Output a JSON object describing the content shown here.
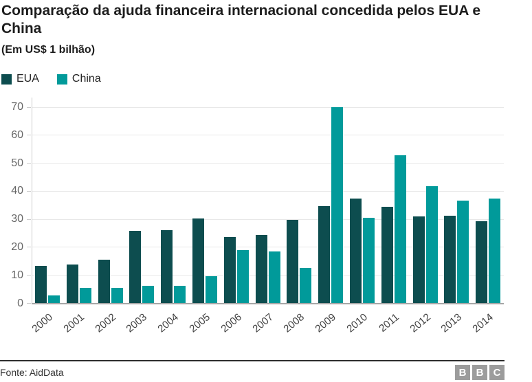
{
  "header": {
    "title": "Comparação da ajuda financeira internacional concedida pelos EUA e China",
    "subtitle": "(Em US$ 1 bilhão)"
  },
  "legend": {
    "items": [
      {
        "label": "EUA",
        "color": "#0d4d4f"
      },
      {
        "label": "China",
        "color": "#019a9a"
      }
    ]
  },
  "chart_data": {
    "type": "bar",
    "title": "Comparação da ajuda financeira internacional concedida pelos EUA e China",
    "subtitle": "(Em US$ 1 bilhão)",
    "categories": [
      "2000",
      "2001",
      "2002",
      "2003",
      "2004",
      "2005",
      "2006",
      "2007",
      "2008",
      "2009",
      "2010",
      "2011",
      "2012",
      "2013",
      "2014"
    ],
    "series": [
      {
        "name": "EUA",
        "color": "#0d4d4f",
        "values": [
          13.4,
          13.9,
          15.5,
          25.8,
          26.2,
          30.4,
          23.7,
          24.3,
          29.9,
          34.6,
          37.3,
          34.4,
          31.0,
          31.3,
          29.4
        ]
      },
      {
        "name": "China",
        "color": "#019a9a",
        "values": [
          2.8,
          5.4,
          5.4,
          6.3,
          6.3,
          9.7,
          18.9,
          18.4,
          12.7,
          69.9,
          30.6,
          52.8,
          41.9,
          36.7,
          37.3
        ]
      }
    ],
    "xlabel": "",
    "ylabel": "",
    "ylim": [
      0,
      70
    ],
    "yticks": [
      0,
      10,
      20,
      30,
      40,
      50,
      60,
      70
    ],
    "grid": true,
    "legend_position": "top-left"
  },
  "footer": {
    "source": "Fonte: AidData",
    "logo_blocks": [
      "B",
      "B",
      "C"
    ]
  }
}
